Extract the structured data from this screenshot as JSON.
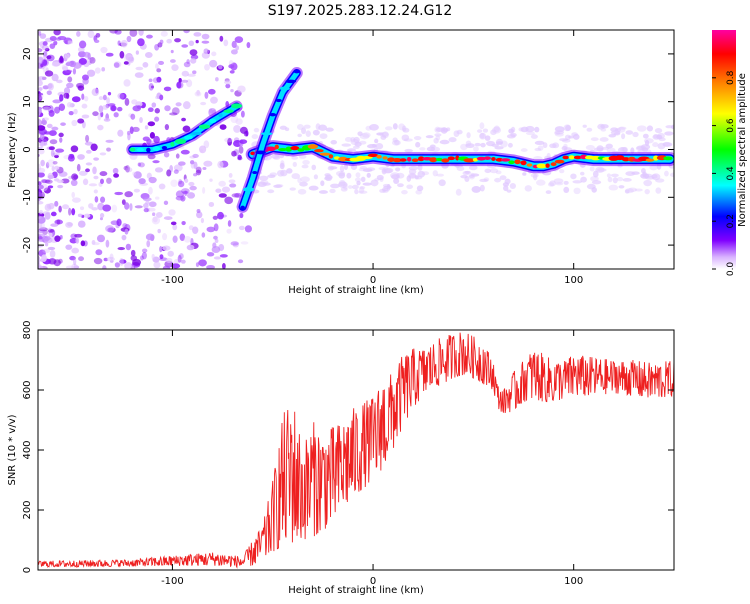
{
  "title": "S197.2025.283.12.24.G12",
  "chart_data": [
    {
      "type": "heatmap",
      "id": "spectrogram",
      "xlabel": "Height of straight line (km)",
      "ylabel": "Frequency (Hz)",
      "xlim": [
        -167,
        150
      ],
      "ylim": [
        -25,
        25
      ],
      "xticks": [
        -100,
        0,
        100
      ],
      "yticks": [
        -20,
        -10,
        0,
        10,
        20
      ],
      "colorbar": {
        "label": "Normalized spectral amplitude",
        "range": [
          0,
          1
        ],
        "ticks": [
          0.0,
          0.2,
          0.4,
          0.6,
          0.8
        ],
        "colors": [
          "#ffffff",
          "#d9b3ff",
          "#8000ff",
          "#0000ff",
          "#00ffff",
          "#00ff00",
          "#ffff00",
          "#ff8000",
          "#ff0000",
          "#ff00a0"
        ]
      },
      "traces": [
        {
          "name": "main-trace",
          "points": [
            [
              -60,
              -1
            ],
            [
              -50,
              0.5
            ],
            [
              -40,
              0
            ],
            [
              -30,
              0.5
            ],
            [
              -20,
              -1.5
            ],
            [
              -10,
              -2
            ],
            [
              0,
              -1.5
            ],
            [
              10,
              -2
            ],
            [
              20,
              -2
            ],
            [
              30,
              -2
            ],
            [
              40,
              -2
            ],
            [
              50,
              -2
            ],
            [
              60,
              -2
            ],
            [
              70,
              -2.5
            ],
            [
              75,
              -3
            ],
            [
              80,
              -3.5
            ],
            [
              85,
              -3.5
            ],
            [
              90,
              -3
            ],
            [
              95,
              -2
            ],
            [
              100,
              -1.5
            ],
            [
              110,
              -2
            ],
            [
              120,
              -2
            ],
            [
              130,
              -2
            ],
            [
              140,
              -2
            ],
            [
              148,
              -2
            ]
          ]
        },
        {
          "name": "upper-branch",
          "points": [
            [
              -120,
              0
            ],
            [
              -110,
              0
            ],
            [
              -100,
              1
            ],
            [
              -90,
              3
            ],
            [
              -80,
              6
            ],
            [
              -68,
              9
            ]
          ]
        },
        {
          "name": "steep-branch",
          "points": [
            [
              -65,
              -12
            ],
            [
              -60,
              -6
            ],
            [
              -55,
              1
            ],
            [
              -50,
              7
            ],
            [
              -45,
              12
            ],
            [
              -38,
              16
            ]
          ]
        }
      ]
    },
    {
      "type": "line",
      "id": "snr",
      "xlabel": "Height of straight line (km)",
      "ylabel": "SNR (10 * v/v)",
      "xlim": [
        -167,
        150
      ],
      "ylim": [
        0,
        800
      ],
      "xticks": [
        -100,
        0,
        100
      ],
      "yticks": [
        0,
        200,
        400,
        600,
        800
      ],
      "color": "#ee2020",
      "envelope": {
        "x": [
          -167,
          -120,
          -80,
          -65,
          -60,
          -55,
          -50,
          -45,
          -40,
          -35,
          -30,
          -25,
          -20,
          -15,
          -10,
          -5,
          0,
          5,
          10,
          15,
          20,
          25,
          30,
          35,
          40,
          45,
          50,
          55,
          60,
          62,
          65,
          70,
          75,
          80,
          85,
          90,
          95,
          100,
          110,
          120,
          130,
          140,
          150
        ],
        "low": [
          10,
          12,
          15,
          8,
          15,
          30,
          60,
          80,
          90,
          100,
          110,
          130,
          160,
          200,
          240,
          270,
          300,
          340,
          400,
          480,
          540,
          580,
          610,
          620,
          640,
          650,
          640,
          620,
          600,
          540,
          520,
          530,
          560,
          570,
          560,
          560,
          570,
          580,
          580,
          590,
          580,
          570,
          580
        ],
        "high": [
          30,
          35,
          60,
          45,
          100,
          150,
          300,
          520,
          580,
          420,
          500,
          460,
          480,
          500,
          540,
          560,
          580,
          640,
          660,
          720,
          740,
          740,
          760,
          780,
          790,
          800,
          780,
          760,
          700,
          620,
          600,
          660,
          700,
          740,
          720,
          700,
          700,
          720,
          710,
          700,
          700,
          690,
          700
        ]
      }
    }
  ]
}
